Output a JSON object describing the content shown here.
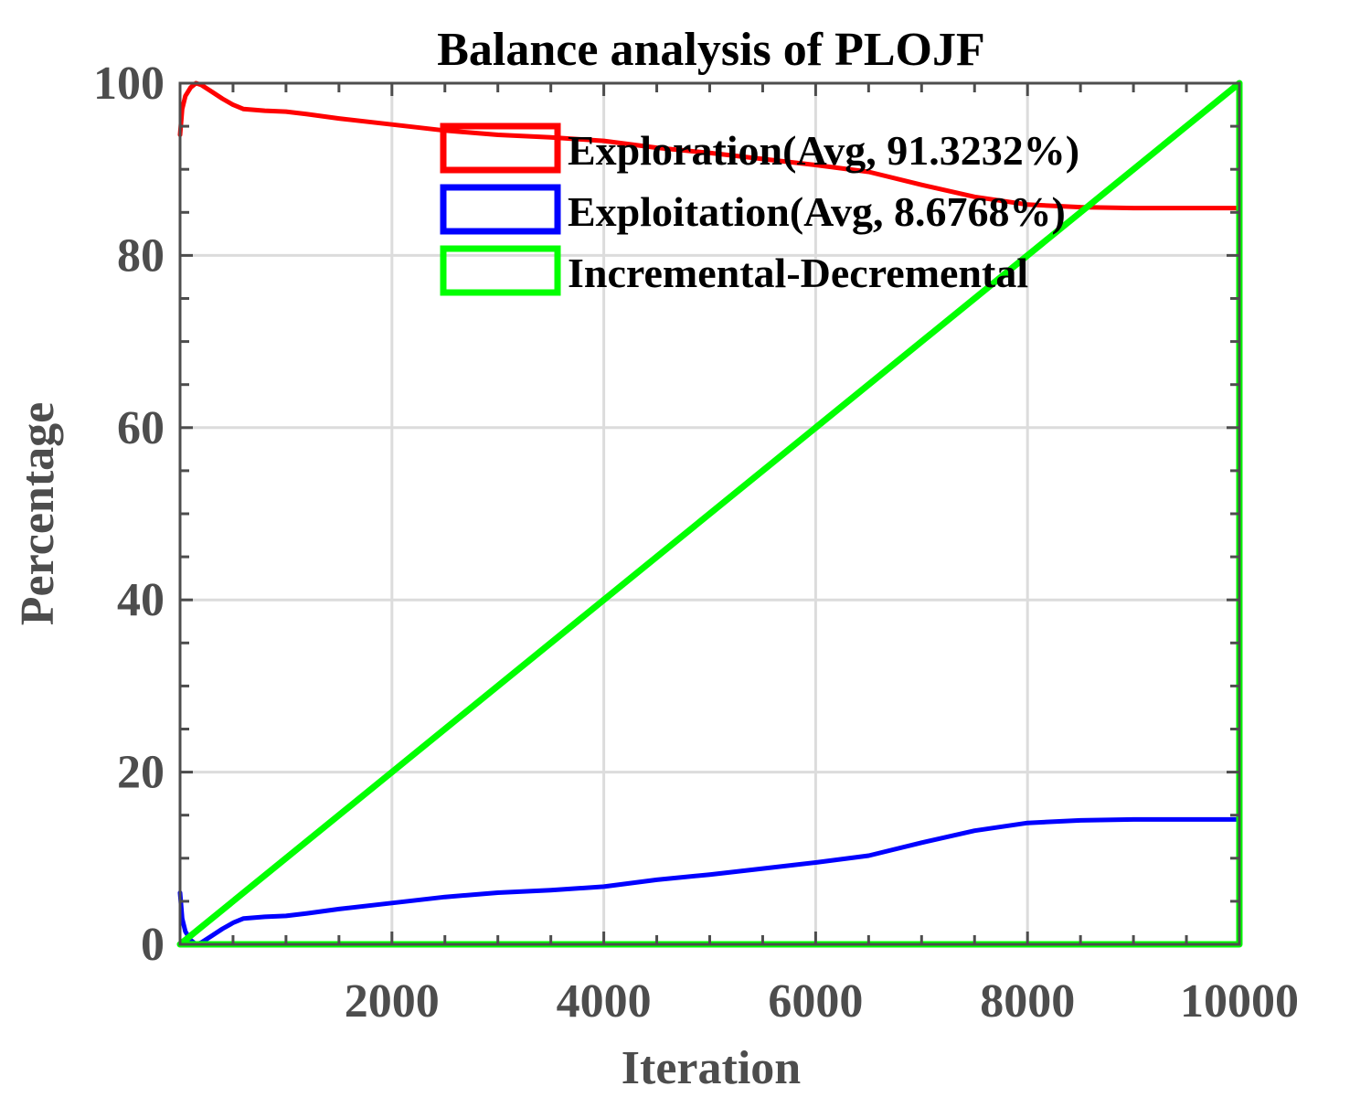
{
  "chart_data": {
    "type": "line",
    "title": "Balance analysis of PLOJF",
    "xlabel": "Iteration",
    "ylabel": "Percentage",
    "xlim": [
      0,
      10000
    ],
    "ylim": [
      0,
      100
    ],
    "xticks": [
      2000,
      4000,
      6000,
      8000,
      10000
    ],
    "yticks": [
      0,
      20,
      40,
      60,
      80,
      100
    ],
    "grid": true,
    "legend": "top-right",
    "series": [
      {
        "name": "Exploration(Avg, 91.3232%)",
        "color": "#ff0000",
        "x": [
          0,
          20,
          50,
          100,
          150,
          200,
          300,
          400,
          500,
          600,
          800,
          1000,
          1200,
          1500,
          2000,
          2500,
          3000,
          3500,
          4000,
          4500,
          5000,
          5500,
          6000,
          6500,
          7000,
          7500,
          8000,
          8500,
          9000,
          9500,
          10000
        ],
        "y": [
          94,
          97,
          98.5,
          99.5,
          100,
          99.8,
          99,
          98.2,
          97.5,
          97,
          96.8,
          96.7,
          96.4,
          95.9,
          95.2,
          94.5,
          94,
          93.7,
          93.3,
          92.5,
          91.9,
          91.2,
          90.5,
          89.7,
          88.2,
          86.8,
          85.9,
          85.6,
          85.5,
          85.5,
          85.5
        ]
      },
      {
        "name": "Exploitation(Avg, 8.6768%)",
        "color": "#0000ff",
        "x": [
          0,
          20,
          50,
          100,
          150,
          200,
          300,
          400,
          500,
          600,
          800,
          1000,
          1200,
          1500,
          2000,
          2500,
          3000,
          3500,
          4000,
          4500,
          5000,
          5500,
          6000,
          6500,
          7000,
          7500,
          8000,
          8500,
          9000,
          9500,
          10000
        ],
        "y": [
          6,
          3,
          1.5,
          0.5,
          0,
          0.2,
          1,
          1.8,
          2.5,
          3,
          3.2,
          3.3,
          3.6,
          4.1,
          4.8,
          5.5,
          6,
          6.3,
          6.7,
          7.5,
          8.1,
          8.8,
          9.5,
          10.3,
          11.8,
          13.2,
          14.1,
          14.4,
          14.5,
          14.5,
          14.5
        ]
      },
      {
        "name": "Incremental-Decremental",
        "color": "#00ff00",
        "x": [
          0,
          10000,
          10000,
          0
        ],
        "y": [
          0,
          100,
          0,
          0
        ]
      }
    ]
  }
}
